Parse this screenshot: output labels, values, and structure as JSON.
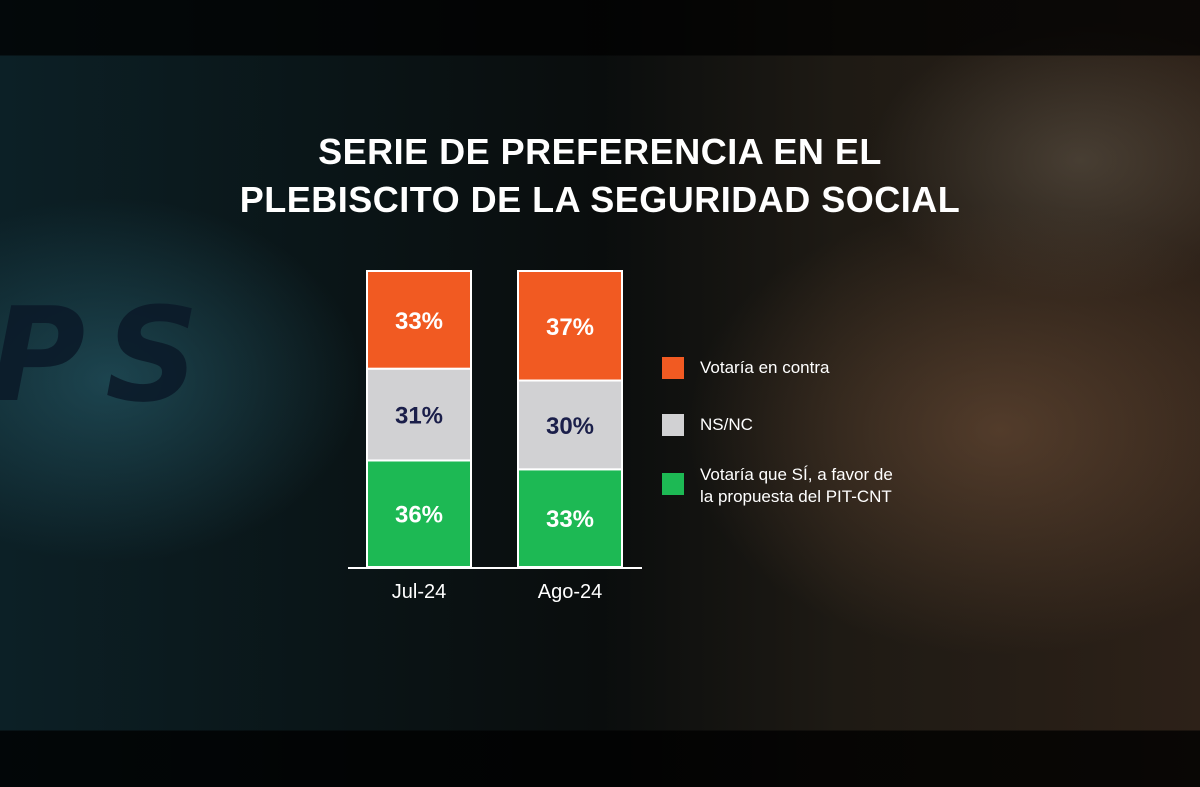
{
  "chart_data": {
    "type": "bar",
    "stacked": true,
    "title": "SERIE DE PREFERENCIA EN EL PLEBISCITO DE LA SEGURIDAD SOCIAL",
    "title_lines": [
      "SERIE DE PREFERENCIA EN EL",
      "PLEBISCITO DE LA SEGURIDAD SOCIAL"
    ],
    "categories": [
      "Jul-24",
      "Ago-24"
    ],
    "series": [
      {
        "name": "Votaría que SÍ, a favor de la propuesta del PIT-CNT",
        "color": "#1db954",
        "values": [
          36,
          33
        ],
        "labels": [
          "36%",
          "33%"
        ],
        "label_color": "#ffffff"
      },
      {
        "name": "NS/NC",
        "color": "#d1d1d3",
        "values": [
          31,
          30
        ],
        "labels": [
          "31%",
          "30%"
        ],
        "label_color": "#1b1f4a"
      },
      {
        "name": "Votaría en contra",
        "color": "#f15a22",
        "values": [
          33,
          37
        ],
        "labels": [
          "33%",
          "37%"
        ],
        "label_color": "#ffffff"
      }
    ],
    "ylim": [
      0,
      100
    ],
    "legend_position": "right",
    "legend_order": [
      "Votaría en contra",
      "NS/NC",
      "Votaría que SÍ, a favor de la propuesta del PIT-CNT"
    ],
    "legend": [
      {
        "label": "Votaría en contra",
        "color": "#f15a22"
      },
      {
        "label": "NS/NC",
        "color": "#d1d1d3"
      },
      {
        "label_lines": [
          "Votaría que SÍ, a favor de",
          "la propuesta del PIT-CNT"
        ],
        "color": "#1db954"
      }
    ]
  }
}
